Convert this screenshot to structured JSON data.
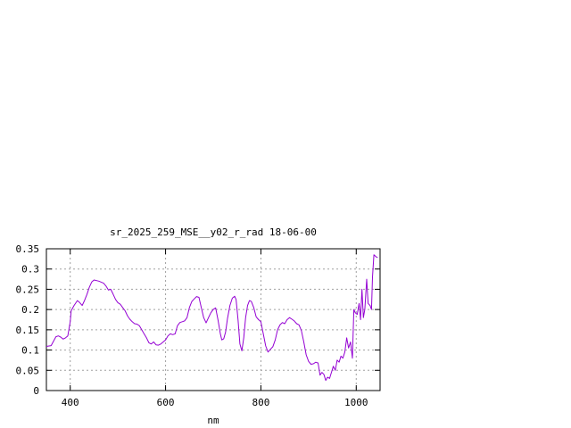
{
  "chart_data": {
    "type": "line",
    "title": "sr_2025_259_MSE__y02_r_rad 18-06-00",
    "xlabel": "nm",
    "ylabel": "",
    "xlim": [
      350,
      1050
    ],
    "ylim": [
      0,
      0.35
    ],
    "x_ticks": [
      400,
      600,
      800,
      1000
    ],
    "y_ticks": [
      0,
      0.05,
      0.1,
      0.15,
      0.2,
      0.25,
      0.3,
      0.35
    ],
    "x_tick_labels": [
      "400",
      "600",
      "800",
      "1000"
    ],
    "y_tick_labels": [
      "0",
      "0.05",
      "0.1",
      "0.15",
      "0.2",
      "0.25",
      "0.3",
      "0.35"
    ],
    "grid": true,
    "legend": "none",
    "series": [
      {
        "color": "#9400d3",
        "points": [
          [
            350,
            0.109
          ],
          [
            360,
            0.111
          ],
          [
            365,
            0.122
          ],
          [
            370,
            0.133
          ],
          [
            375,
            0.135
          ],
          [
            380,
            0.132
          ],
          [
            385,
            0.127
          ],
          [
            390,
            0.13
          ],
          [
            395,
            0.135
          ],
          [
            400,
            0.17
          ],
          [
            402,
            0.197
          ],
          [
            408,
            0.21
          ],
          [
            415,
            0.222
          ],
          [
            420,
            0.217
          ],
          [
            425,
            0.21
          ],
          [
            430,
            0.222
          ],
          [
            435,
            0.237
          ],
          [
            440,
            0.255
          ],
          [
            445,
            0.268
          ],
          [
            450,
            0.273
          ],
          [
            460,
            0.27
          ],
          [
            470,
            0.265
          ],
          [
            475,
            0.258
          ],
          [
            480,
            0.248
          ],
          [
            485,
            0.25
          ],
          [
            490,
            0.238
          ],
          [
            495,
            0.225
          ],
          [
            500,
            0.217
          ],
          [
            505,
            0.213
          ],
          [
            510,
            0.205
          ],
          [
            515,
            0.197
          ],
          [
            520,
            0.185
          ],
          [
            525,
            0.176
          ],
          [
            530,
            0.17
          ],
          [
            535,
            0.165
          ],
          [
            540,
            0.164
          ],
          [
            545,
            0.16
          ],
          [
            550,
            0.15
          ],
          [
            555,
            0.14
          ],
          [
            560,
            0.13
          ],
          [
            565,
            0.118
          ],
          [
            570,
            0.115
          ],
          [
            575,
            0.12
          ],
          [
            580,
            0.113
          ],
          [
            585,
            0.112
          ],
          [
            590,
            0.115
          ],
          [
            595,
            0.12
          ],
          [
            600,
            0.125
          ],
          [
            605,
            0.135
          ],
          [
            610,
            0.14
          ],
          [
            615,
            0.138
          ],
          [
            620,
            0.14
          ],
          [
            625,
            0.16
          ],
          [
            630,
            0.168
          ],
          [
            635,
            0.17
          ],
          [
            640,
            0.172
          ],
          [
            645,
            0.18
          ],
          [
            650,
            0.205
          ],
          [
            655,
            0.22
          ],
          [
            660,
            0.226
          ],
          [
            665,
            0.232
          ],
          [
            670,
            0.23
          ],
          [
            675,
            0.205
          ],
          [
            680,
            0.18
          ],
          [
            685,
            0.167
          ],
          [
            690,
            0.18
          ],
          [
            695,
            0.192
          ],
          [
            700,
            0.2
          ],
          [
            705,
            0.204
          ],
          [
            710,
            0.175
          ],
          [
            715,
            0.14
          ],
          [
            718,
            0.125
          ],
          [
            722,
            0.128
          ],
          [
            726,
            0.145
          ],
          [
            730,
            0.178
          ],
          [
            735,
            0.21
          ],
          [
            740,
            0.228
          ],
          [
            745,
            0.233
          ],
          [
            748,
            0.225
          ],
          [
            752,
            0.175
          ],
          [
            756,
            0.115
          ],
          [
            760,
            0.098
          ],
          [
            764,
            0.13
          ],
          [
            768,
            0.18
          ],
          [
            772,
            0.21
          ],
          [
            776,
            0.222
          ],
          [
            780,
            0.22
          ],
          [
            785,
            0.205
          ],
          [
            790,
            0.182
          ],
          [
            795,
            0.175
          ],
          [
            800,
            0.17
          ],
          [
            805,
            0.14
          ],
          [
            810,
            0.11
          ],
          [
            815,
            0.095
          ],
          [
            820,
            0.102
          ],
          [
            825,
            0.108
          ],
          [
            830,
            0.125
          ],
          [
            835,
            0.15
          ],
          [
            840,
            0.162
          ],
          [
            845,
            0.168
          ],
          [
            850,
            0.165
          ],
          [
            855,
            0.175
          ],
          [
            860,
            0.18
          ],
          [
            865,
            0.176
          ],
          [
            870,
            0.172
          ],
          [
            875,
            0.165
          ],
          [
            880,
            0.162
          ],
          [
            885,
            0.148
          ],
          [
            890,
            0.12
          ],
          [
            895,
            0.088
          ],
          [
            900,
            0.072
          ],
          [
            905,
            0.065
          ],
          [
            910,
            0.066
          ],
          [
            915,
            0.07
          ],
          [
            920,
            0.068
          ],
          [
            924,
            0.038
          ],
          [
            928,
            0.045
          ],
          [
            932,
            0.04
          ],
          [
            936,
            0.025
          ],
          [
            940,
            0.033
          ],
          [
            944,
            0.03
          ],
          [
            948,
            0.045
          ],
          [
            952,
            0.06
          ],
          [
            956,
            0.05
          ],
          [
            960,
            0.075
          ],
          [
            964,
            0.07
          ],
          [
            968,
            0.085
          ],
          [
            972,
            0.08
          ],
          [
            976,
            0.095
          ],
          [
            980,
            0.13
          ],
          [
            984,
            0.105
          ],
          [
            988,
            0.12
          ],
          [
            992,
            0.08
          ],
          [
            995,
            0.2
          ],
          [
            998,
            0.192
          ],
          [
            1002,
            0.188
          ],
          [
            1006,
            0.215
          ],
          [
            1009,
            0.175
          ],
          [
            1012,
            0.25
          ],
          [
            1015,
            0.18
          ],
          [
            1018,
            0.2
          ],
          [
            1022,
            0.275
          ],
          [
            1025,
            0.215
          ],
          [
            1029,
            0.21
          ],
          [
            1032,
            0.2
          ],
          [
            1034,
            0.28
          ],
          [
            1037,
            0.335
          ],
          [
            1042,
            0.33
          ],
          [
            1045,
            0.328
          ]
        ]
      }
    ]
  }
}
